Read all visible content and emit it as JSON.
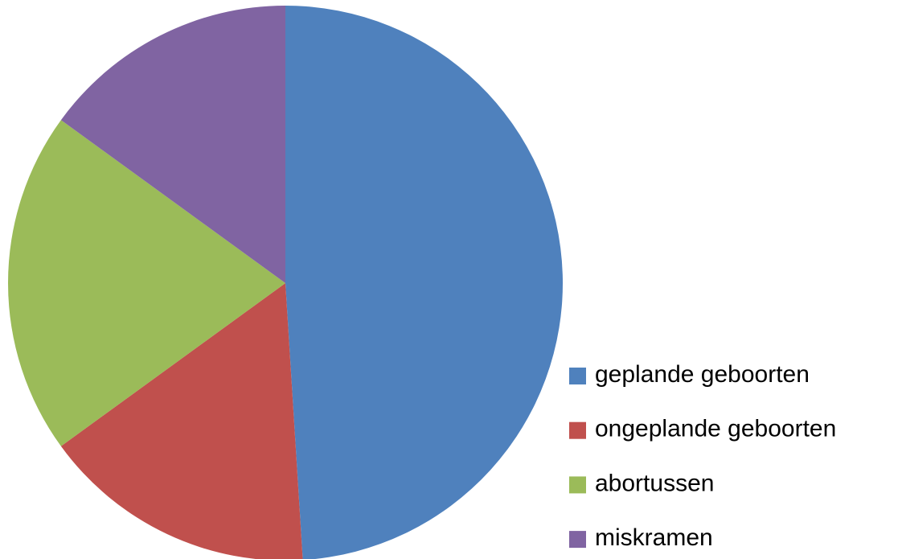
{
  "chart_data": {
    "type": "pie",
    "categories": [
      "geplande geboorten",
      "ongeplande geboorten",
      "abortussen",
      "miskramen"
    ],
    "values": [
      49,
      16,
      20,
      15
    ],
    "colors": [
      "#4f81bd",
      "#c0504d",
      "#9bbb59",
      "#8064a2"
    ],
    "legend": "right"
  }
}
